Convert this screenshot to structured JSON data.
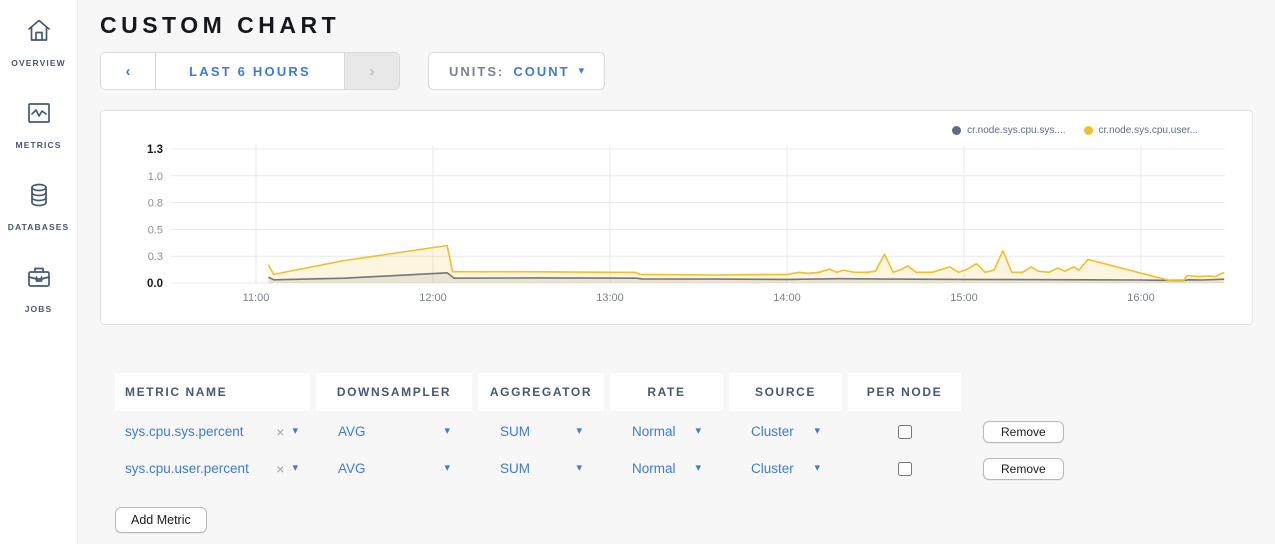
{
  "sidebar": {
    "items": [
      {
        "label": "OVERVIEW",
        "icon": "home-icon"
      },
      {
        "label": "METRICS",
        "icon": "metrics-icon"
      },
      {
        "label": "DATABASES",
        "icon": "databases-icon"
      },
      {
        "label": "JOBS",
        "icon": "jobs-icon"
      }
    ]
  },
  "header": {
    "title": "CUSTOM CHART"
  },
  "toolbar": {
    "time_range": {
      "prev": "‹",
      "label": "LAST 6 HOURS",
      "next": "›"
    },
    "units": {
      "label": "UNITS:",
      "value": "COUNT",
      "caret": "▾"
    }
  },
  "chart_data": {
    "type": "line",
    "title": "",
    "xlabel": "",
    "ylabel": "",
    "ylim": [
      0,
      1.25
    ],
    "y_tick_labels": [
      "1.3",
      "1.0",
      "0.8",
      "0.5",
      "0.3",
      "0.0"
    ],
    "x_tick_labels": [
      "11:00",
      "12:00",
      "13:00",
      "14:00",
      "15:00",
      "16:00"
    ],
    "x_tick_hours": [
      11,
      12,
      13,
      14,
      15,
      16
    ],
    "grid": true,
    "legend_position": "top-right",
    "legend": [
      {
        "name": "cr.node.sys.cpu.sys....",
        "color": "#5F6C87"
      },
      {
        "name": "cr.node.sys.cpu.user...",
        "color": "#F2BE2C"
      }
    ],
    "series": [
      {
        "name": "cr.node.sys.cpu.sys....",
        "color": "#5F6C87",
        "fill": "rgba(95,108,135,0.13)",
        "points": [
          [
            11.07,
            0.055
          ],
          [
            11.1,
            0.03
          ],
          [
            11.5,
            0.045
          ],
          [
            12.08,
            0.095
          ],
          [
            12.12,
            0.045
          ],
          [
            12.6,
            0.048
          ],
          [
            13.0,
            0.046
          ],
          [
            13.15,
            0.045
          ],
          [
            13.18,
            0.038
          ],
          [
            13.6,
            0.036
          ],
          [
            14.0,
            0.034
          ],
          [
            14.3,
            0.04
          ],
          [
            14.6,
            0.036
          ],
          [
            15.0,
            0.034
          ],
          [
            15.3,
            0.032
          ],
          [
            15.7,
            0.03
          ],
          [
            16.0,
            0.028
          ],
          [
            16.17,
            0.024
          ],
          [
            16.24,
            0.024
          ],
          [
            16.27,
            0.03
          ],
          [
            16.35,
            0.028
          ],
          [
            16.47,
            0.035
          ]
        ]
      },
      {
        "name": "cr.node.sys.cpu.user...",
        "color": "#F2BE2C",
        "fill": "rgba(242,190,44,0.15)",
        "points": [
          [
            11.07,
            0.17
          ],
          [
            11.1,
            0.08
          ],
          [
            11.5,
            0.21
          ],
          [
            12.08,
            0.35
          ],
          [
            12.11,
            0.105
          ],
          [
            12.5,
            0.105
          ],
          [
            13.0,
            0.1
          ],
          [
            13.14,
            0.1
          ],
          [
            13.17,
            0.08
          ],
          [
            13.6,
            0.075
          ],
          [
            14.0,
            0.08
          ],
          [
            14.07,
            0.1
          ],
          [
            14.12,
            0.09
          ],
          [
            14.18,
            0.1
          ],
          [
            14.24,
            0.13
          ],
          [
            14.28,
            0.1
          ],
          [
            14.32,
            0.12
          ],
          [
            14.38,
            0.1
          ],
          [
            14.45,
            0.1
          ],
          [
            14.5,
            0.11
          ],
          [
            14.55,
            0.27
          ],
          [
            14.6,
            0.1
          ],
          [
            14.65,
            0.13
          ],
          [
            14.68,
            0.16
          ],
          [
            14.73,
            0.1
          ],
          [
            14.82,
            0.1
          ],
          [
            14.92,
            0.15
          ],
          [
            14.97,
            0.1
          ],
          [
            15.02,
            0.13
          ],
          [
            15.07,
            0.18
          ],
          [
            15.12,
            0.1
          ],
          [
            15.17,
            0.12
          ],
          [
            15.22,
            0.3
          ],
          [
            15.27,
            0.1
          ],
          [
            15.33,
            0.1
          ],
          [
            15.38,
            0.15
          ],
          [
            15.42,
            0.11
          ],
          [
            15.48,
            0.1
          ],
          [
            15.53,
            0.14
          ],
          [
            15.57,
            0.11
          ],
          [
            15.62,
            0.15
          ],
          [
            15.65,
            0.12
          ],
          [
            15.7,
            0.22
          ],
          [
            16.17,
            0.02
          ],
          [
            16.24,
            0.02
          ],
          [
            16.26,
            0.07
          ],
          [
            16.32,
            0.06
          ],
          [
            16.38,
            0.065
          ],
          [
            16.42,
            0.06
          ],
          [
            16.47,
            0.1
          ]
        ]
      }
    ]
  },
  "table": {
    "headers": [
      "METRIC NAME",
      "DOWNSAMPLER",
      "AGGREGATOR",
      "RATE",
      "SOURCE",
      "PER NODE"
    ],
    "rows": [
      {
        "metric": "sys.cpu.sys.percent",
        "clear": "×",
        "caret": "▾",
        "downsampler": "AVG",
        "aggregator": "SUM",
        "rate": "Normal",
        "source": "Cluster",
        "per_node_checked": false,
        "remove_label": "Remove"
      },
      {
        "metric": "sys.cpu.user.percent",
        "clear": "×",
        "caret": "▾",
        "downsampler": "AVG",
        "aggregator": "SUM",
        "rate": "Normal",
        "source": "Cluster",
        "per_node_checked": false,
        "remove_label": "Remove"
      }
    ],
    "add_button": "Add Metric"
  },
  "colors": {
    "accent_blue": "#3e7bd6",
    "series_slate": "#5F6C87",
    "series_yellow": "#F2BE2C"
  }
}
